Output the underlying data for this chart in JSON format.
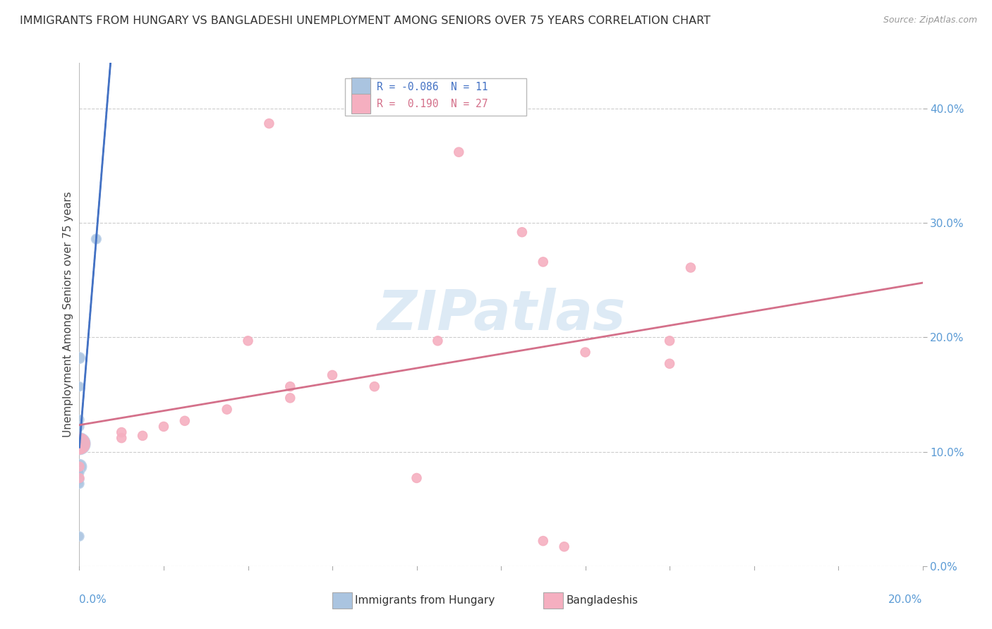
{
  "title": "IMMIGRANTS FROM HUNGARY VS BANGLADESHI UNEMPLOYMENT AMONG SENIORS OVER 75 YEARS CORRELATION CHART",
  "source": "Source: ZipAtlas.com",
  "ylabel": "Unemployment Among Seniors over 75 years",
  "ytick_labels": [
    "0.0%",
    "10.0%",
    "20.0%",
    "30.0%",
    "40.0%"
  ],
  "ytick_values": [
    0.0,
    0.1,
    0.2,
    0.3,
    0.4
  ],
  "xlim": [
    0.0,
    0.2
  ],
  "ylim": [
    0.0,
    0.44
  ],
  "legend_hungary": {
    "R": "-0.086",
    "N": "11"
  },
  "legend_bangladeshi": {
    "R": "0.190",
    "N": "27"
  },
  "watermark": "ZIPatlas",
  "hungary_color": "#aac4e0",
  "hungary_edge_color": "#c0d4ea",
  "bangladeshi_color": "#f5afc0",
  "bangladeshi_edge_color": "#f5afc0",
  "hungary_line_color": "#4472c4",
  "bangladeshi_line_color": "#d4708a",
  "hungary_points": [
    [
      0.004,
      0.286
    ],
    [
      0.0,
      0.182
    ],
    [
      0.0,
      0.157
    ],
    [
      0.0,
      0.128
    ],
    [
      0.0,
      0.122
    ],
    [
      0.0,
      0.107
    ],
    [
      0.0,
      0.087
    ],
    [
      0.0,
      0.082
    ],
    [
      0.0,
      0.076
    ],
    [
      0.0,
      0.072
    ],
    [
      0.0,
      0.026
    ]
  ],
  "hungary_sizes": [
    100,
    130,
    90,
    90,
    90,
    500,
    220,
    90,
    90,
    90,
    90
  ],
  "bangladeshi_points": [
    [
      0.045,
      0.387
    ],
    [
      0.09,
      0.362
    ],
    [
      0.105,
      0.292
    ],
    [
      0.11,
      0.266
    ],
    [
      0.145,
      0.261
    ],
    [
      0.14,
      0.197
    ],
    [
      0.085,
      0.197
    ],
    [
      0.04,
      0.197
    ],
    [
      0.12,
      0.187
    ],
    [
      0.14,
      0.177
    ],
    [
      0.06,
      0.167
    ],
    [
      0.07,
      0.157
    ],
    [
      0.05,
      0.157
    ],
    [
      0.05,
      0.147
    ],
    [
      0.035,
      0.137
    ],
    [
      0.025,
      0.127
    ],
    [
      0.02,
      0.122
    ],
    [
      0.01,
      0.117
    ],
    [
      0.015,
      0.114
    ],
    [
      0.01,
      0.112
    ],
    [
      0.0,
      0.107
    ],
    [
      0.0,
      0.102
    ],
    [
      0.0,
      0.087
    ],
    [
      0.08,
      0.077
    ],
    [
      0.11,
      0.022
    ],
    [
      0.115,
      0.017
    ],
    [
      0.0,
      0.077
    ]
  ],
  "bangladeshi_sizes": [
    90,
    90,
    90,
    90,
    90,
    90,
    90,
    90,
    90,
    90,
    90,
    90,
    90,
    90,
    90,
    90,
    90,
    90,
    90,
    90,
    450,
    90,
    90,
    90,
    90,
    90,
    90
  ]
}
